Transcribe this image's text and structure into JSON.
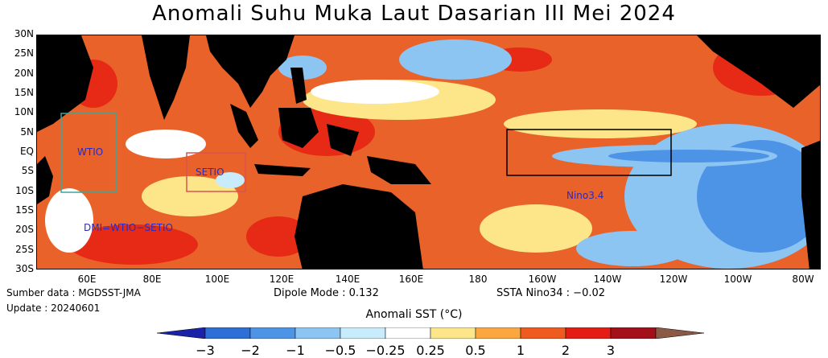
{
  "title": "Anomali Suhu Muka Laut Dasarian III Mei 2024",
  "lat_labels": [
    "30N",
    "25N",
    "20N",
    "15N",
    "10N",
    "5N",
    "EQ",
    "5S",
    "10S",
    "15S",
    "20S",
    "25S",
    "30S"
  ],
  "lon_labels": [
    "60E",
    "80E",
    "100E",
    "120E",
    "140E",
    "160E",
    "180",
    "160W",
    "140W",
    "120W",
    "100W",
    "80W"
  ],
  "regions": {
    "wtio": {
      "label": "WTIO",
      "color": "#3aa79b"
    },
    "setio": {
      "label": "SETIO",
      "color": "#d9534f"
    },
    "nino34": {
      "label": "Nino3.4",
      "color": "#000000"
    }
  },
  "dmi_formula": "DMI=WTIO−SETIO",
  "source": "Sumber data : MGDSST-JMA",
  "update": "Update : 20240601",
  "dipole_mode": "Dipole Mode : 0.132",
  "ssta_nino34": "SSTA Nino34 : −0.02",
  "colorbar": {
    "title": "Anomali SST (°C)",
    "ticks": [
      "−3",
      "−2",
      "−1",
      "−0.5",
      "−0.25",
      "0.25",
      "0.5",
      "1",
      "2",
      "3"
    ],
    "colors": [
      "#1a22a8",
      "#2d6fd6",
      "#4d93e6",
      "#8cc4f2",
      "#c8ecfb",
      "#ffffff",
      "#fde68a",
      "#fca63f",
      "#ef5a1e",
      "#e51c16",
      "#a4101a",
      "#8b5a46"
    ]
  }
}
